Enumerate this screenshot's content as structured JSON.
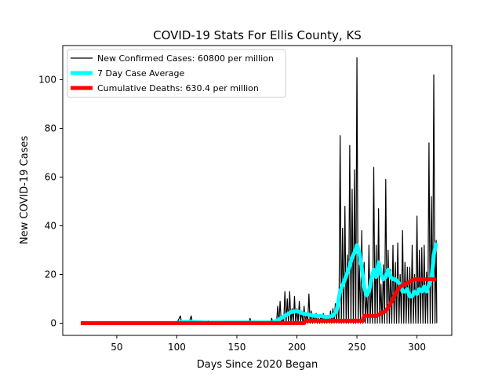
{
  "chart_data": {
    "type": "line",
    "title": "COVID-19 Stats For Ellis County, KS",
    "xlabel": "Days Since 2020 Began",
    "ylabel": "New COVID-19 Cases",
    "xlim": [
      5,
      329
    ],
    "ylim": [
      -5,
      114
    ],
    "xticks": [
      50,
      100,
      150,
      200,
      250,
      300
    ],
    "yticks": [
      0,
      20,
      40,
      60,
      80,
      100
    ],
    "grid": false,
    "legend_position": "top-left",
    "series": [
      {
        "name": "New Confirmed Cases: 60800 per million",
        "color": "#000000",
        "points": [
          [
            20,
            0
          ],
          [
            100,
            0
          ],
          [
            103,
            3
          ],
          [
            104,
            0
          ],
          [
            110,
            0
          ],
          [
            112,
            3
          ],
          [
            113,
            0
          ],
          [
            125,
            0
          ],
          [
            126,
            1
          ],
          [
            127,
            0
          ],
          [
            160,
            0
          ],
          [
            161,
            2
          ],
          [
            162,
            0
          ],
          [
            178,
            0
          ],
          [
            179,
            2
          ],
          [
            180,
            0
          ],
          [
            183,
            0
          ],
          [
            184,
            7
          ],
          [
            185,
            0
          ],
          [
            186,
            9
          ],
          [
            187,
            0
          ],
          [
            188,
            2
          ],
          [
            189,
            0
          ],
          [
            190,
            13
          ],
          [
            191,
            0
          ],
          [
            192,
            10
          ],
          [
            193,
            0
          ],
          [
            194,
            13
          ],
          [
            195,
            0
          ],
          [
            196,
            6
          ],
          [
            197,
            0
          ],
          [
            198,
            11
          ],
          [
            199,
            0
          ],
          [
            200,
            6
          ],
          [
            201,
            0
          ],
          [
            202,
            9
          ],
          [
            203,
            0
          ],
          [
            204,
            5
          ],
          [
            205,
            0
          ],
          [
            206,
            7
          ],
          [
            207,
            0
          ],
          [
            208,
            4
          ],
          [
            209,
            0
          ],
          [
            210,
            12
          ],
          [
            211,
            0
          ],
          [
            212,
            5
          ],
          [
            213,
            0
          ],
          [
            214,
            3
          ],
          [
            215,
            0
          ],
          [
            216,
            4
          ],
          [
            217,
            0
          ],
          [
            218,
            2
          ],
          [
            219,
            0
          ],
          [
            220,
            3
          ],
          [
            221,
            0
          ],
          [
            222,
            4
          ],
          [
            223,
            0
          ],
          [
            224,
            2
          ],
          [
            225,
            0
          ],
          [
            226,
            3
          ],
          [
            227,
            0
          ],
          [
            228,
            5
          ],
          [
            229,
            0
          ],
          [
            230,
            6
          ],
          [
            231,
            0
          ],
          [
            232,
            8
          ],
          [
            233,
            0
          ],
          [
            234,
            10
          ],
          [
            235,
            0
          ],
          [
            236,
            77
          ],
          [
            237,
            0
          ],
          [
            238,
            39
          ],
          [
            239,
            0
          ],
          [
            240,
            48
          ],
          [
            241,
            0
          ],
          [
            242,
            28
          ],
          [
            243,
            0
          ],
          [
            244,
            73
          ],
          [
            245,
            0
          ],
          [
            246,
            55
          ],
          [
            247,
            0
          ],
          [
            248,
            63
          ],
          [
            249,
            0
          ],
          [
            250,
            109
          ],
          [
            251,
            0
          ],
          [
            252,
            24
          ],
          [
            253,
            0
          ],
          [
            254,
            38
          ],
          [
            255,
            0
          ],
          [
            256,
            25
          ],
          [
            257,
            0
          ],
          [
            258,
            13
          ],
          [
            259,
            0
          ],
          [
            260,
            32
          ],
          [
            261,
            0
          ],
          [
            262,
            18
          ],
          [
            263,
            0
          ],
          [
            264,
            64
          ],
          [
            265,
            0
          ],
          [
            266,
            32
          ],
          [
            267,
            0
          ],
          [
            268,
            47
          ],
          [
            269,
            0
          ],
          [
            270,
            16
          ],
          [
            271,
            0
          ],
          [
            272,
            24
          ],
          [
            273,
            0
          ],
          [
            274,
            59
          ],
          [
            275,
            0
          ],
          [
            276,
            30
          ],
          [
            277,
            0
          ],
          [
            278,
            22
          ],
          [
            279,
            0
          ],
          [
            280,
            32
          ],
          [
            281,
            0
          ],
          [
            282,
            25
          ],
          [
            283,
            0
          ],
          [
            284,
            33
          ],
          [
            285,
            0
          ],
          [
            286,
            20
          ],
          [
            287,
            0
          ],
          [
            288,
            38
          ],
          [
            289,
            0
          ],
          [
            290,
            25
          ],
          [
            291,
            0
          ],
          [
            292,
            23
          ],
          [
            293,
            0
          ],
          [
            294,
            23
          ],
          [
            295,
            0
          ],
          [
            296,
            32
          ],
          [
            297,
            0
          ],
          [
            298,
            20
          ],
          [
            299,
            0
          ],
          [
            300,
            44
          ],
          [
            301,
            0
          ],
          [
            302,
            30
          ],
          [
            303,
            0
          ],
          [
            304,
            31
          ],
          [
            305,
            0
          ],
          [
            306,
            32
          ],
          [
            307,
            0
          ],
          [
            308,
            21
          ],
          [
            309,
            0
          ],
          [
            310,
            74
          ],
          [
            311,
            0
          ],
          [
            312,
            52
          ],
          [
            313,
            0
          ],
          [
            314,
            102
          ],
          [
            315,
            0
          ],
          [
            316,
            34
          ],
          [
            316.5,
            0
          ]
        ]
      },
      {
        "name": "7 Day Case Average",
        "color": "#00ffff",
        "points": [
          [
            20,
            0
          ],
          [
            100,
            0
          ],
          [
            104,
            0.5
          ],
          [
            115,
            0.5
          ],
          [
            125,
            0.2
          ],
          [
            160,
            0.3
          ],
          [
            180,
            0.3
          ],
          [
            185,
            1.5
          ],
          [
            190,
            3
          ],
          [
            195,
            4.5
          ],
          [
            200,
            5
          ],
          [
            205,
            4
          ],
          [
            210,
            3.5
          ],
          [
            215,
            3
          ],
          [
            220,
            3
          ],
          [
            225,
            2.5
          ],
          [
            230,
            3
          ],
          [
            233,
            5
          ],
          [
            236,
            13
          ],
          [
            240,
            18
          ],
          [
            243,
            22
          ],
          [
            246,
            27
          ],
          [
            248,
            29
          ],
          [
            250,
            32
          ],
          [
            252,
            29
          ],
          [
            254,
            23
          ],
          [
            256,
            15
          ],
          [
            258,
            11.5
          ],
          [
            260,
            13
          ],
          [
            262,
            18
          ],
          [
            264,
            22
          ],
          [
            266,
            19
          ],
          [
            268,
            25
          ],
          [
            270,
            20
          ],
          [
            272,
            18
          ],
          [
            274,
            19
          ],
          [
            276,
            22
          ],
          [
            278,
            19
          ],
          [
            280,
            18
          ],
          [
            282,
            18
          ],
          [
            284,
            17
          ],
          [
            286,
            16
          ],
          [
            288,
            13
          ],
          [
            290,
            13
          ],
          [
            292,
            14
          ],
          [
            294,
            11
          ],
          [
            296,
            11
          ],
          [
            298,
            13
          ],
          [
            300,
            12
          ],
          [
            302,
            14
          ],
          [
            304,
            13
          ],
          [
            306,
            15
          ],
          [
            308,
            13
          ],
          [
            310,
            16
          ],
          [
            312,
            18
          ],
          [
            314,
            28
          ],
          [
            316,
            33
          ]
        ]
      },
      {
        "name": "Cumulative Deaths: 630.4 per million",
        "color": "#ff0000",
        "points": [
          [
            20,
            0
          ],
          [
            206,
            0
          ],
          [
            207,
            1
          ],
          [
            255,
            1
          ],
          [
            256,
            3
          ],
          [
            262,
            3
          ],
          [
            266,
            3
          ],
          [
            270,
            4
          ],
          [
            274,
            5
          ],
          [
            278,
            8
          ],
          [
            282,
            12
          ],
          [
            286,
            15
          ],
          [
            290,
            16
          ],
          [
            294,
            17
          ],
          [
            298,
            18
          ],
          [
            316,
            18
          ]
        ]
      }
    ]
  }
}
